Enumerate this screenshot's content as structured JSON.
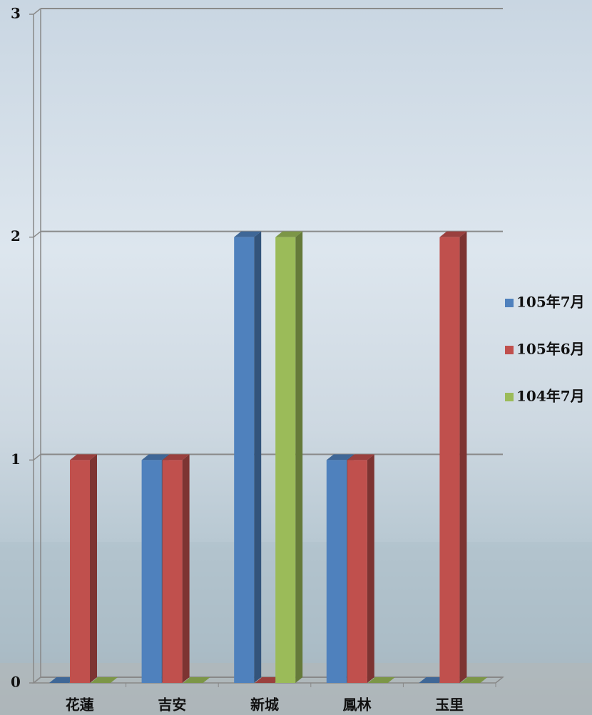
{
  "chart_data": {
    "type": "bar3d",
    "categories": [
      "花蓮",
      "吉安",
      "新城",
      "鳳林",
      "玉里"
    ],
    "series": [
      {
        "name": "105年7月",
        "color": "#4f81bd",
        "values": [
          0,
          1,
          2,
          1,
          0
        ]
      },
      {
        "name": "105年6月",
        "color": "#c0504d",
        "values": [
          1,
          1,
          0,
          1,
          2
        ]
      },
      {
        "name": "104年7月",
        "color": "#9bbb59",
        "values": [
          0,
          0,
          2,
          0,
          0
        ]
      }
    ],
    "ylim": [
      0,
      3
    ],
    "yticks": [
      0,
      1,
      2,
      3
    ],
    "grid": true,
    "legend": "right"
  }
}
